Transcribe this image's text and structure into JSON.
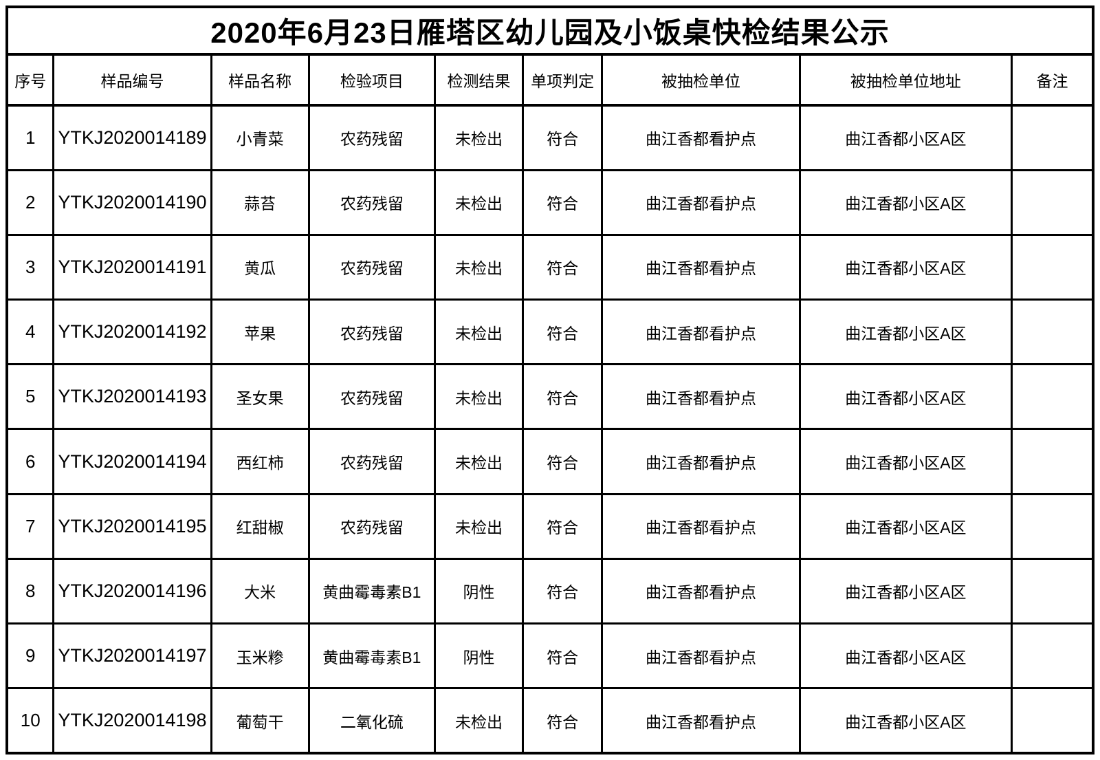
{
  "title": "2020年6月23日雁塔区幼儿园及小饭桌快检结果公示",
  "table": {
    "headers": [
      "序号",
      "样品编号",
      "样品名称",
      "检验项目",
      "检测结果",
      "单项判定",
      "被抽检单位",
      "被抽检单位地址",
      "备注"
    ],
    "col_widths": [
      "4.3%",
      "14.5%",
      "9.0%",
      "11.6%",
      "8.1%",
      "7.3%",
      "18.2%",
      "19.5%",
      "7.5%"
    ],
    "rows": [
      [
        "1",
        "YTKJ2020014189",
        "小青菜",
        "农药残留",
        "未检出",
        "符合",
        "曲江香都看护点",
        "曲江香都小区A区",
        ""
      ],
      [
        "2",
        "YTKJ2020014190",
        "蒜苔",
        "农药残留",
        "未检出",
        "符合",
        "曲江香都看护点",
        "曲江香都小区A区",
        ""
      ],
      [
        "3",
        "YTKJ2020014191",
        "黄瓜",
        "农药残留",
        "未检出",
        "符合",
        "曲江香都看护点",
        "曲江香都小区A区",
        ""
      ],
      [
        "4",
        "YTKJ2020014192",
        "苹果",
        "农药残留",
        "未检出",
        "符合",
        "曲江香都看护点",
        "曲江香都小区A区",
        ""
      ],
      [
        "5",
        "YTKJ2020014193",
        "圣女果",
        "农药残留",
        "未检出",
        "符合",
        "曲江香都看护点",
        "曲江香都小区A区",
        ""
      ],
      [
        "6",
        "YTKJ2020014194",
        "西红柿",
        "农药残留",
        "未检出",
        "符合",
        "曲江香都看护点",
        "曲江香都小区A区",
        ""
      ],
      [
        "7",
        "YTKJ2020014195",
        "红甜椒",
        "农药残留",
        "未检出",
        "符合",
        "曲江香都看护点",
        "曲江香都小区A区",
        ""
      ],
      [
        "8",
        "YTKJ2020014196",
        "大米",
        "黄曲霉毒素B1",
        "阴性",
        "符合",
        "曲江香都看护点",
        "曲江香都小区A区",
        ""
      ],
      [
        "9",
        "YTKJ2020014197",
        "玉米糁",
        "黄曲霉毒素B1",
        "阴性",
        "符合",
        "曲江香都看护点",
        "曲江香都小区A区",
        ""
      ],
      [
        "10",
        "YTKJ2020014198",
        "葡萄干",
        "二氧化硫",
        "未检出",
        "符合",
        "曲江香都看护点",
        "曲江香都小区A区",
        ""
      ]
    ]
  },
  "colors": {
    "border": "#000000",
    "background": "#ffffff",
    "text": "#000000"
  }
}
